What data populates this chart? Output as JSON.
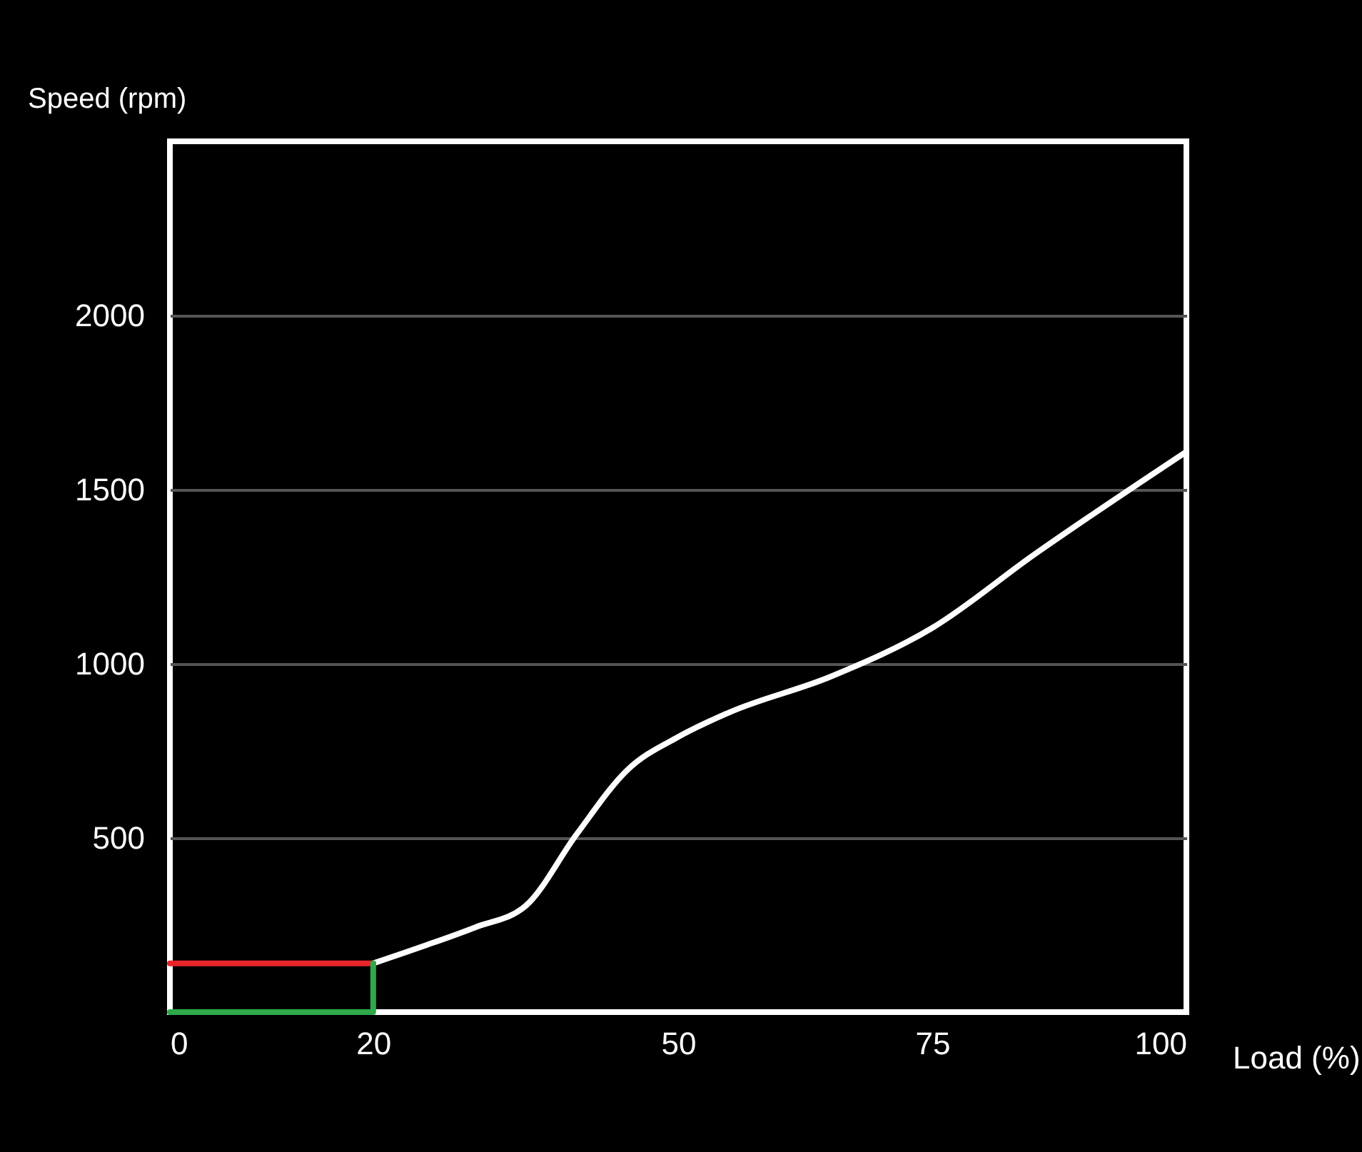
{
  "chart_data": {
    "type": "line",
    "xlabel": "Load (%)",
    "ylabel": "Speed (rpm)",
    "xlim": [
      0,
      100
    ],
    "xticks": [
      0,
      20,
      50,
      75,
      100
    ],
    "ylim": [
      0,
      2500
    ],
    "yticks": [
      500,
      1000,
      1500,
      2000
    ],
    "grid": "y",
    "line_style": "solid",
    "series": [
      {
        "color": "#ffffff",
        "x": [
          20,
          25,
          30,
          35,
          40,
          45,
          50,
          55,
          65,
          75,
          85,
          100
        ],
        "values": [
          140,
          190,
          243,
          305,
          510,
          695,
          790,
          860,
          963,
          1103,
          1313,
          1609
        ]
      },
      {
        "color": "#e8262a",
        "x": [
          0,
          20
        ],
        "values": [
          140,
          140
        ]
      },
      {
        "color": "#2eaa4a",
        "x": [
          0,
          20,
          20
        ],
        "values": [
          0,
          0,
          140
        ]
      }
    ]
  }
}
